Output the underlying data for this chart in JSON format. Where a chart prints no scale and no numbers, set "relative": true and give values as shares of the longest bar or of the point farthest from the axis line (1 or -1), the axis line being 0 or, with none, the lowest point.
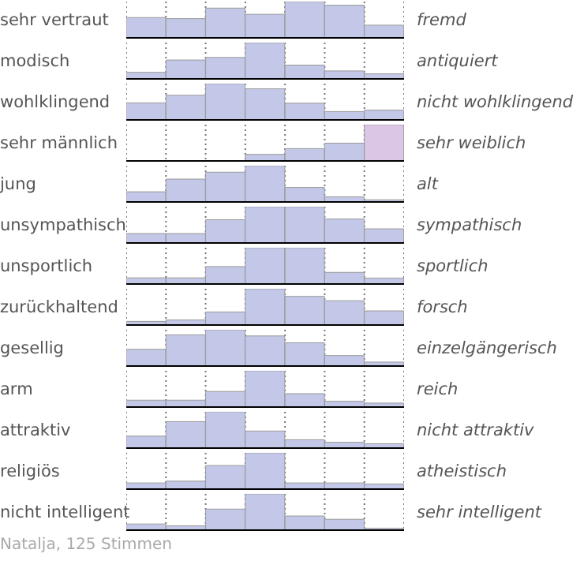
{
  "chart_data": [
    {
      "type": "bar",
      "relative": true,
      "ylabel": "sehr vertraut",
      "y2label": "fremd",
      "categories": [
        null,
        null,
        null,
        null,
        null,
        null,
        null
      ],
      "values": [
        0.56,
        0.53,
        0.82,
        0.65,
        1,
        0.9,
        0.35
      ],
      "color": "#c3c8e8",
      "grid": "x"
    },
    {
      "type": "bar",
      "relative": true,
      "ylabel": "modisch",
      "y2label": "antiquiert",
      "categories": [
        null,
        null,
        null,
        null,
        null,
        null,
        null
      ],
      "values": [
        0.18,
        0.52,
        0.59,
        1,
        0.38,
        0.22,
        0.14
      ],
      "color": "#c3c8e8",
      "grid": "x"
    },
    {
      "type": "bar",
      "relative": true,
      "ylabel": "wohlklingend",
      "y2label": "nicht wohlklingend",
      "categories": [
        null,
        null,
        null,
        null,
        null,
        null,
        null
      ],
      "values": [
        0.47,
        0.68,
        1,
        0.86,
        0.46,
        0.23,
        0.27
      ],
      "color": "#c3c8e8",
      "grid": "x"
    },
    {
      "type": "bar",
      "relative": true,
      "ylabel": "sehr männlich",
      "y2label": "sehr weiblich",
      "categories": [
        null,
        null,
        null,
        null,
        null,
        null,
        null
      ],
      "values": [
        0,
        0,
        0,
        0.18,
        0.34,
        0.49,
        1
      ],
      "colors": [
        "#c3c8e8",
        "#c3c8e8",
        "#c3c8e8",
        "#c3c8e8",
        "#c3c8e8",
        "#c3c8e8",
        "#dcc6e6"
      ],
      "grid": "x"
    },
    {
      "type": "bar",
      "relative": true,
      "ylabel": "jung",
      "y2label": "alt",
      "categories": [
        null,
        null,
        null,
        null,
        null,
        null,
        null
      ],
      "values": [
        0.28,
        0.63,
        0.82,
        1,
        0.4,
        0.14,
        0.06
      ],
      "color": "#c3c8e8",
      "grid": "x"
    },
    {
      "type": "bar",
      "relative": true,
      "ylabel": "unsympathisch",
      "y2label": "sympathisch",
      "categories": [
        null,
        null,
        null,
        null,
        null,
        null,
        null
      ],
      "values": [
        0.26,
        0.26,
        0.64,
        1,
        1,
        0.66,
        0.39
      ],
      "color": "#c3c8e8",
      "grid": "x"
    },
    {
      "type": "bar",
      "relative": true,
      "ylabel": "unsportlich",
      "y2label": "sportlich",
      "categories": [
        null,
        null,
        null,
        null,
        null,
        null,
        null
      ],
      "values": [
        0.17,
        0.17,
        0.48,
        1,
        1,
        0.32,
        0.16
      ],
      "color": "#c3c8e8",
      "grid": "x"
    },
    {
      "type": "bar",
      "relative": true,
      "ylabel": "zurückhaltend",
      "y2label": "forsch",
      "categories": [
        null,
        null,
        null,
        null,
        null,
        null,
        null
      ],
      "values": [
        0.1,
        0.14,
        0.36,
        1,
        0.79,
        0.67,
        0.39
      ],
      "color": "#c3c8e8",
      "grid": "x"
    },
    {
      "type": "bar",
      "relative": true,
      "ylabel": "gesellig",
      "y2label": "einzelgängerisch",
      "categories": [
        null,
        null,
        null,
        null,
        null,
        null,
        null
      ],
      "values": [
        0.46,
        0.86,
        1,
        0.83,
        0.64,
        0.29,
        0.11
      ],
      "color": "#c3c8e8",
      "grid": "x"
    },
    {
      "type": "bar",
      "relative": true,
      "ylabel": "arm",
      "y2label": "reich",
      "categories": [
        null,
        null,
        null,
        null,
        null,
        null,
        null
      ],
      "values": [
        0.19,
        0.19,
        0.43,
        1,
        0.37,
        0.16,
        0.11
      ],
      "color": "#c3c8e8",
      "grid": "x"
    },
    {
      "type": "bar",
      "relative": true,
      "ylabel": "attraktiv",
      "y2label": "nicht attraktiv",
      "categories": [
        null,
        null,
        null,
        null,
        null,
        null,
        null
      ],
      "values": [
        0.33,
        0.73,
        1,
        0.47,
        0.23,
        0.16,
        0.12
      ],
      "color": "#c3c8e8",
      "grid": "x"
    },
    {
      "type": "bar",
      "relative": true,
      "ylabel": "religiös",
      "y2label": "atheistisch",
      "categories": [
        null,
        null,
        null,
        null,
        null,
        null,
        null
      ],
      "values": [
        0.17,
        0.22,
        0.65,
        1,
        0.17,
        0.17,
        0.14
      ],
      "color": "#c3c8e8",
      "grid": "x"
    },
    {
      "type": "bar",
      "relative": true,
      "ylabel": "nicht intelligent",
      "y2label": "sehr intelligent",
      "categories": [
        null,
        null,
        null,
        null,
        null,
        null,
        null
      ],
      "values": [
        0.17,
        0.12,
        0.58,
        1,
        0.39,
        0.3,
        0.05
      ],
      "color": "#c3c8e8",
      "grid": "x",
      "annotations": [
        "Natalja, 125 Stimmen"
      ]
    }
  ]
}
